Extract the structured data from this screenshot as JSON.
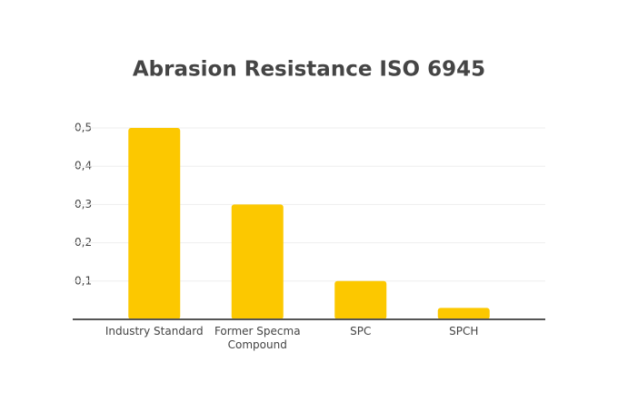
{
  "chart_data": {
    "type": "bar",
    "title": "Abrasion Resistance ISO 6945",
    "categories": [
      "Industry Standard",
      "Former Specma Compound",
      "SPC",
      "SPCH"
    ],
    "values": [
      0.5,
      0.3,
      0.1,
      0.03
    ],
    "color": "#fcc800",
    "ylim": [
      0,
      0.5
    ],
    "yticks": [
      {
        "value": 0.1,
        "label": "0,1"
      },
      {
        "value": 0.2,
        "label": "0,2"
      },
      {
        "value": 0.3,
        "label": "0,3"
      },
      {
        "value": 0.4,
        "label": "0,4"
      },
      {
        "value": 0.5,
        "label": "0,5"
      }
    ],
    "grid": true
  }
}
